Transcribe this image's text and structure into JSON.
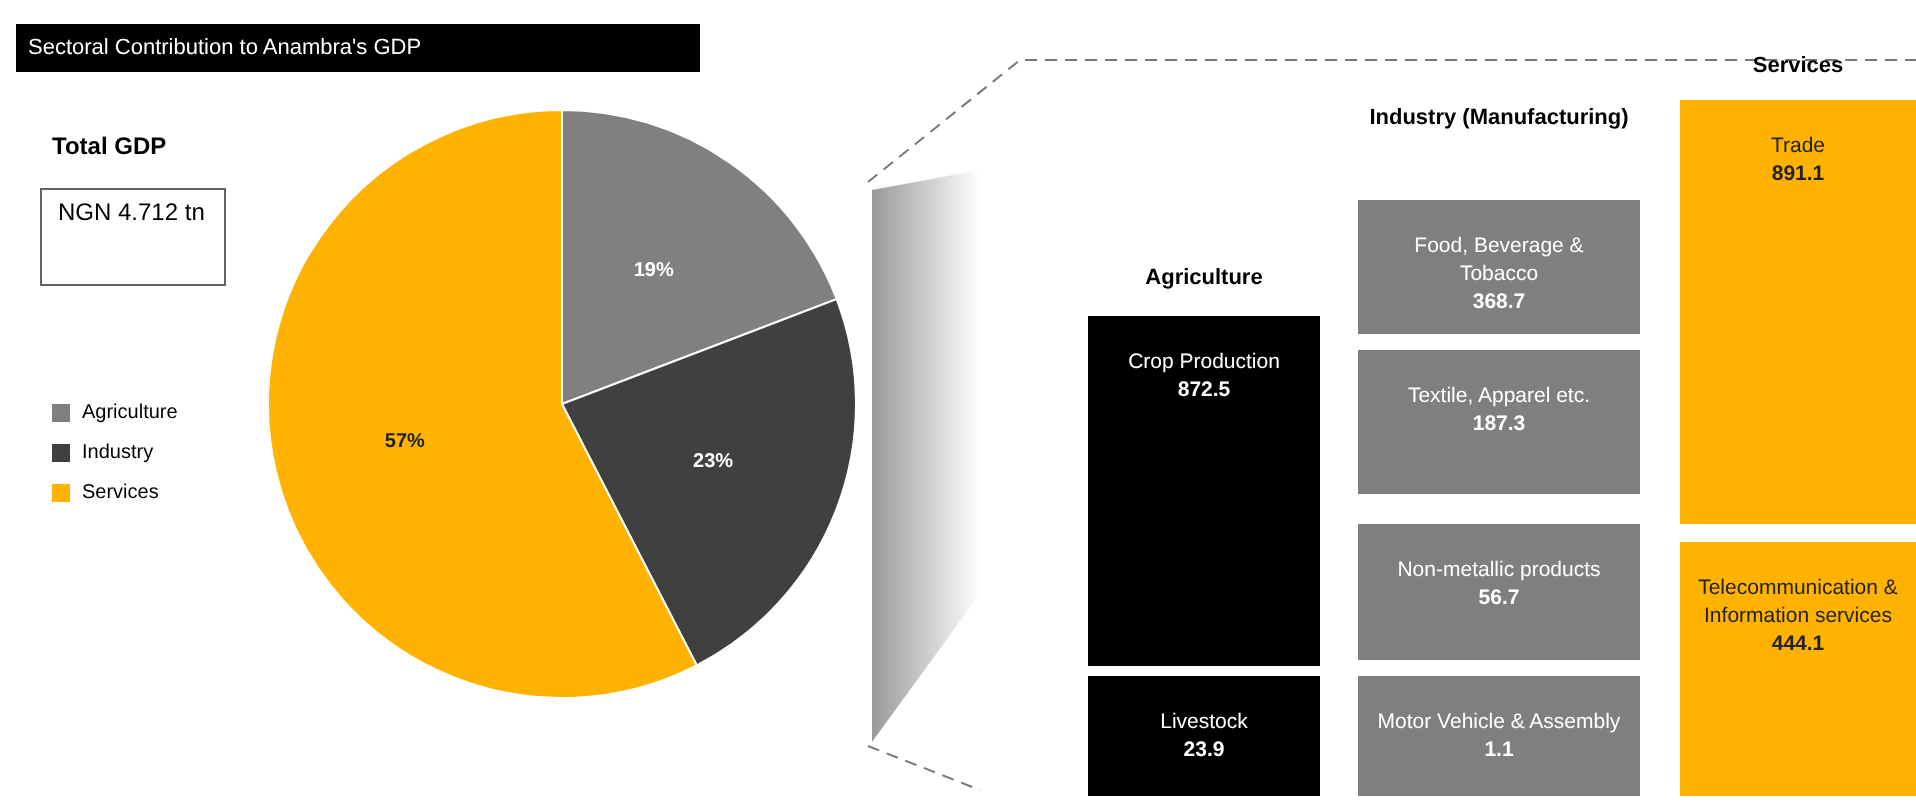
{
  "chart_data": [
    {
      "type": "pie",
      "title": "Sectoral Contribution to Anambra's GDP",
      "subtitle": "Total GDP",
      "annotations": [
        "NGN 4.712 tn"
      ],
      "categories": [
        "Agriculture",
        "Industry",
        "Services"
      ],
      "values": [
        19,
        23,
        57
      ],
      "colors": [
        "#808080",
        "#404040",
        "#ffb300"
      ],
      "value_labels": [
        "19%",
        "23%",
        "57%"
      ],
      "legend": "left"
    },
    {
      "type": "other",
      "title": "Agriculture",
      "categories": [
        "Crop Production",
        "Livestock"
      ],
      "values": [
        872.5,
        23.9
      ],
      "color": "#000000",
      "data_labels": true
    },
    {
      "type": "other",
      "title": "Industry (Manufacturing)",
      "categories": [
        "Food, Beverage & Tobacco",
        "Textile, Apparel etc.",
        "Non-metallic products",
        "Motor Vehicle & Assembly"
      ],
      "values": [
        368.7,
        187.3,
        56.7,
        1.1
      ],
      "color": "#7f7f7f",
      "data_labels": true
    },
    {
      "type": "other",
      "title": "Services",
      "categories": [
        "Trade",
        "Telecommunication & Information services"
      ],
      "values": [
        891.1,
        444.1
      ],
      "color": "#ffb300",
      "data_labels": true
    }
  ]
}
